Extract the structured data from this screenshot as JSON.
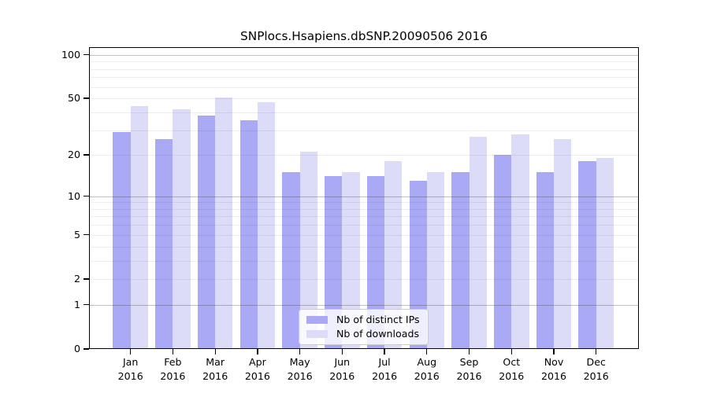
{
  "title": "SNPlocs.Hsapiens.dbSNP.20090506 2016",
  "chart_data": {
    "type": "bar",
    "title": "SNPlocs.Hsapiens.dbSNP.20090506 2016",
    "categories": [
      "Jan",
      "Feb",
      "Mar",
      "Apr",
      "May",
      "Jun",
      "Jul",
      "Aug",
      "Sep",
      "Oct",
      "Nov",
      "Dec"
    ],
    "year": "2016",
    "series": [
      {
        "name": "Nb of distinct IPs",
        "color": "#a9a9f5",
        "values": [
          29,
          26,
          38,
          35,
          15,
          14,
          14,
          13,
          15,
          20,
          15,
          18
        ]
      },
      {
        "name": "Nb of downloads",
        "color": "#dcdcf9",
        "values": [
          44,
          42,
          51,
          47,
          21,
          15,
          18,
          15,
          27,
          28,
          26,
          19
        ]
      }
    ],
    "xlabel": "",
    "ylabel": "",
    "y_scale": "log10(value+1)",
    "ylim": [
      0,
      113
    ],
    "grid_on": true,
    "legend_position": "lower center",
    "y_ticks": [
      {
        "label": "100",
        "value": 100
      },
      {
        "label": "50",
        "value": 50
      },
      {
        "label": "20",
        "value": 20
      },
      {
        "label": "10",
        "value": 10
      },
      {
        "label": "5",
        "value": 5
      },
      {
        "label": "2",
        "value": 2
      },
      {
        "label": "1",
        "value": 1
      },
      {
        "label": "0",
        "value": 0
      }
    ],
    "grid": {
      "major": [
        1,
        10,
        100
      ],
      "minor": [
        2,
        3,
        4,
        5,
        6,
        7,
        8,
        9,
        20,
        30,
        40,
        50,
        60,
        70,
        80,
        90
      ]
    }
  }
}
